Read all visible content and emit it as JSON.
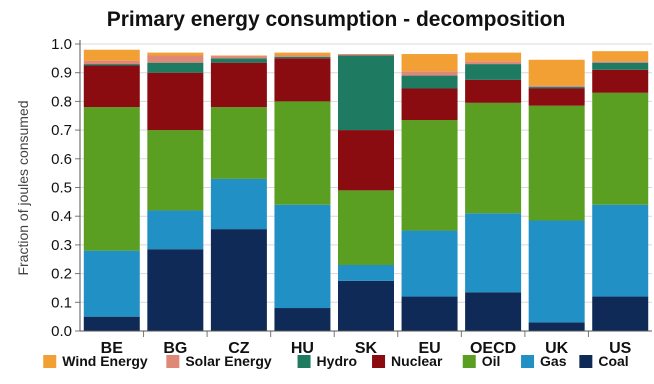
{
  "chart_data": {
    "type": "bar",
    "stacked": true,
    "title": "Primary energy consumption - decomposition",
    "xlabel": "",
    "ylabel": "Fraction of joules consumed",
    "ylim": [
      0,
      1.0
    ],
    "yticks": [
      "0.0",
      "0.1",
      "0.2",
      "0.3",
      "0.4",
      "0.5",
      "0.6",
      "0.7",
      "0.8",
      "0.9",
      "1.0"
    ],
    "grid": "horizontal",
    "legend_position": "bottom",
    "categories": [
      "BE",
      "BG",
      "CZ",
      "HU",
      "SK",
      "EU",
      "OECD",
      "UK",
      "US"
    ],
    "series": [
      {
        "name": "Coal",
        "color": "#0f2a56",
        "values": [
          0.05,
          0.285,
          0.355,
          0.08,
          0.175,
          0.12,
          0.135,
          0.03,
          0.12
        ]
      },
      {
        "name": "Gas",
        "color": "#2190c4",
        "values": [
          0.23,
          0.135,
          0.175,
          0.36,
          0.055,
          0.23,
          0.275,
          0.355,
          0.32
        ]
      },
      {
        "name": "Oil",
        "color": "#5a9e22",
        "values": [
          0.5,
          0.28,
          0.25,
          0.36,
          0.26,
          0.385,
          0.385,
          0.4,
          0.39
        ]
      },
      {
        "name": "Nuclear",
        "color": "#8a0b10",
        "values": [
          0.145,
          0.2,
          0.155,
          0.15,
          0.21,
          0.11,
          0.08,
          0.06,
          0.08
        ]
      },
      {
        "name": "Hydro",
        "color": "#1f7a62",
        "values": [
          0.005,
          0.035,
          0.015,
          0.005,
          0.26,
          0.045,
          0.055,
          0.005,
          0.025
        ]
      },
      {
        "name": "Solar Energy",
        "color": "#e08878",
        "values": [
          0.012,
          0.025,
          0.008,
          0.005,
          0.005,
          0.015,
          0.01,
          0.005,
          0.005
        ]
      },
      {
        "name": "Wind Energy",
        "color": "#f29f34",
        "values": [
          0.038,
          0.01,
          0.002,
          0.01,
          0.0,
          0.06,
          0.03,
          0.09,
          0.035
        ]
      }
    ],
    "legend": [
      "Wind Energy",
      "Solar Energy",
      "Hydro",
      "Nuclear",
      "Oil",
      "Gas",
      "Coal"
    ]
  }
}
